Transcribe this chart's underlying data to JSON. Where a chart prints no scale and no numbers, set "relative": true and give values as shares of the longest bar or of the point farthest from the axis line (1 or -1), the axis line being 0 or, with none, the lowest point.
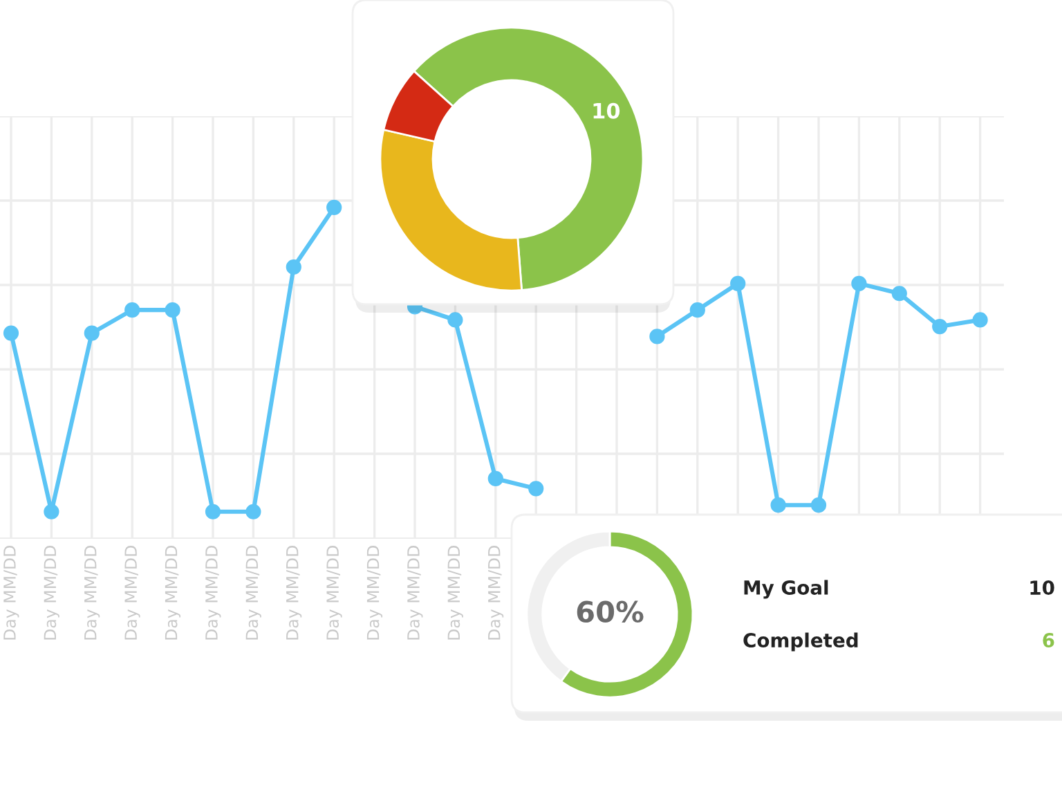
{
  "chart_data": [
    {
      "type": "line",
      "relative": true,
      "grid": true,
      "marker": "circle",
      "line_style": "solid",
      "categories": [
        "Day MM/DD",
        "Day MM/DD",
        "Day MM/DD",
        "Day MM/DD",
        "Day MM/DD",
        "Day MM/DD",
        "Day MM/DD",
        "Day MM/DD",
        "Day MM/DD",
        "Day MM/DD",
        "Day MM/DD",
        "Day MM/DD",
        "Day MM/DD",
        null,
        null,
        null,
        null,
        null,
        null,
        null,
        null,
        null,
        null,
        null,
        null
      ],
      "series": [
        {
          "color": "#5bc4f5",
          "values": [
            0.62,
            0.08,
            0.62,
            0.69,
            0.69,
            0.08,
            0.08,
            0.82,
            1.0,
            null,
            0.7,
            0.66,
            0.18,
            0.15,
            null,
            null,
            0.61,
            0.69,
            0.77,
            0.1,
            0.1,
            0.77,
            0.74,
            0.64,
            0.66
          ]
        }
      ]
    },
    {
      "type": "donut",
      "categories": [
        null,
        null,
        null
      ],
      "values": [
        10,
        4.8,
        1.3
      ],
      "colors": [
        "#8bc34a",
        "#e8b71d",
        "#d42a14"
      ],
      "value_labels": [
        "10",
        null,
        null
      ]
    },
    {
      "type": "donut",
      "categories": [
        null,
        null
      ],
      "values": [
        60,
        40
      ],
      "colors": [
        "#8bc34a",
        "#f0f0f0"
      ],
      "annotations": [
        "60%"
      ]
    },
    {
      "type": "other",
      "annotations": [
        "My Goal",
        "10",
        "Completed",
        "6"
      ]
    }
  ]
}
